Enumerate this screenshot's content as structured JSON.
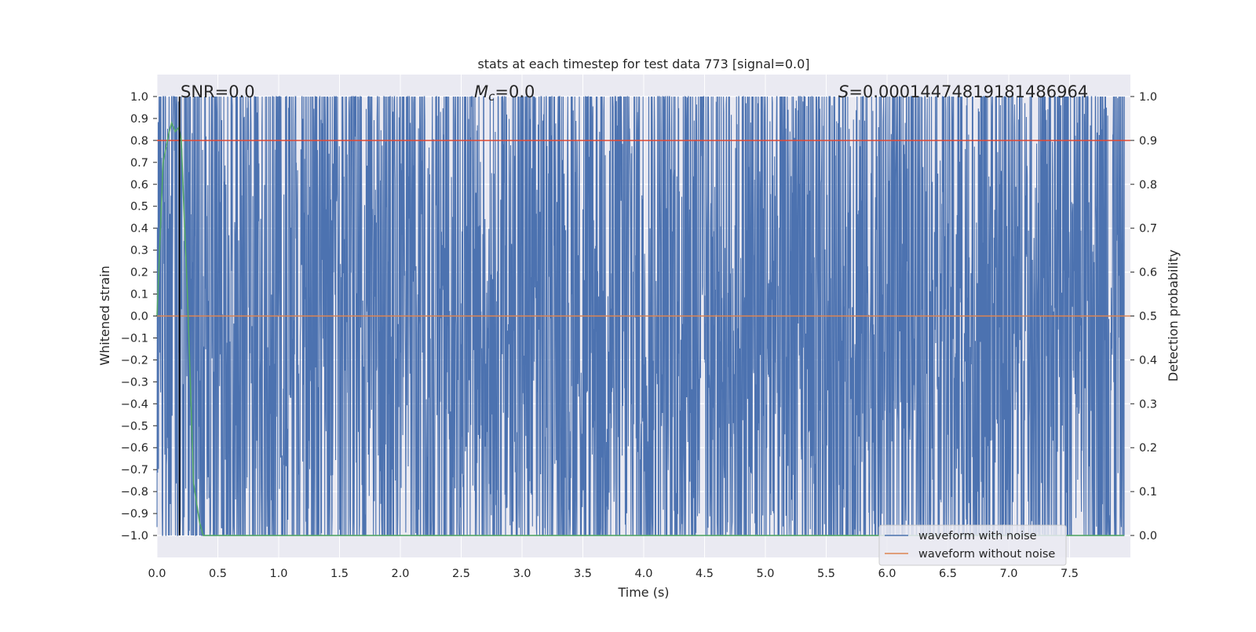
{
  "chart_data": {
    "type": "line",
    "title": "stats at each timestep for test data 773 [signal=0.0]",
    "xlabel": "Time (s)",
    "ylabel_left": "Whitened strain",
    "ylabel_right": "Detection probability",
    "xlim": [
      0.0,
      8.0
    ],
    "ylim_left": [
      -1.1,
      1.1
    ],
    "ylim_right": [
      -0.05,
      1.05
    ],
    "x_ticks": [
      "0.0",
      "0.5",
      "1.0",
      "1.5",
      "2.0",
      "2.5",
      "3.0",
      "3.5",
      "4.0",
      "4.5",
      "5.0",
      "5.5",
      "6.0",
      "6.5",
      "7.0",
      "7.5"
    ],
    "y_left_ticks": [
      "1.0",
      "0.9",
      "0.8",
      "0.7",
      "0.6",
      "0.5",
      "0.4",
      "0.3",
      "0.2",
      "0.1",
      "0.0",
      "−0.1",
      "−0.2",
      "−0.3",
      "−0.4",
      "−0.5",
      "−0.6",
      "−0.7",
      "−0.8",
      "−0.9",
      "−1.0"
    ],
    "y_right_ticks": [
      "1.0",
      "0.9",
      "0.8",
      "0.7",
      "0.6",
      "0.5",
      "0.4",
      "0.3",
      "0.2",
      "0.1",
      "0.0"
    ],
    "annotations": {
      "snr": "SNR=0.0",
      "mc_symbol": "M",
      "mc_sub": "c",
      "mc_value": "=0.0",
      "s_symbol": "S",
      "s_value": "=0.00014474819181486964"
    },
    "grid": true,
    "legend_position": "lower-right",
    "series": [
      {
        "name": "waveform with noise",
        "color": "#4c72b0",
        "axis": "left",
        "description_range": [
          -1.0,
          1.0
        ]
      },
      {
        "name": "waveform without noise",
        "color": "#dd8452",
        "axis": "left",
        "x": [
          0.0,
          8.0
        ],
        "y": [
          0.0,
          0.0
        ]
      },
      {
        "color": "#55a868",
        "axis": "right",
        "x": [
          0.0,
          0.05,
          0.1,
          0.12,
          0.15,
          0.18,
          0.2,
          0.22,
          0.25,
          0.28,
          0.3,
          0.35,
          0.38,
          0.4,
          1.0,
          2.0,
          3.0,
          4.0,
          5.0,
          6.0,
          7.0,
          7.95
        ],
        "y": [
          0.5,
          0.85,
          0.92,
          0.94,
          0.92,
          0.93,
          0.9,
          0.75,
          0.55,
          0.3,
          0.12,
          0.03,
          0.0,
          0.0,
          0.0,
          0.0,
          0.0,
          0.0,
          0.0,
          0.0,
          0.0,
          0.0
        ]
      },
      {
        "color": "#e24a33",
        "axis": "right",
        "x": [
          0.0,
          8.0
        ],
        "y": [
          0.9,
          0.9
        ]
      },
      {
        "color": "#000000",
        "axis": "left",
        "x": [
          0.185,
          0.185
        ],
        "y": [
          -1.0,
          1.0
        ]
      }
    ]
  }
}
